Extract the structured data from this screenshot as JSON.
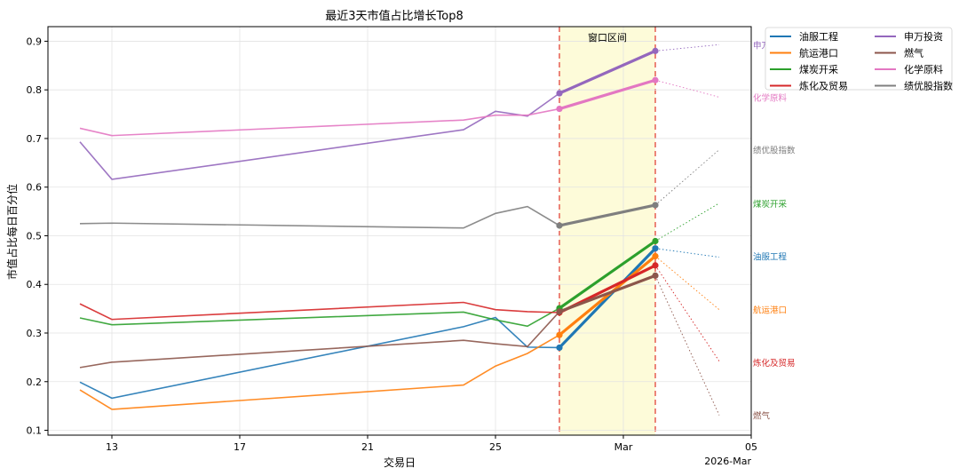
{
  "chart_data": {
    "type": "line",
    "title": "最近3天市值占比增长Top8",
    "xlabel": "交易日",
    "ylabel": "市值占比每日百分位",
    "xlim": [
      "2026-02-11",
      "2026-03-05"
    ],
    "ylim": [
      0.09,
      0.93
    ],
    "x_ticks": [
      {
        "date": "2026-02-13",
        "label": "13"
      },
      {
        "date": "2026-02-17",
        "label": "17"
      },
      {
        "date": "2026-02-21",
        "label": "21"
      },
      {
        "date": "2026-02-25",
        "label": "25"
      },
      {
        "date": "2026-03-01",
        "label": "Mar"
      },
      {
        "date": "2026-03-05",
        "label": "05"
      }
    ],
    "x_offset_label": "2026-Mar",
    "y_ticks": [
      0.1,
      0.2,
      0.3,
      0.4,
      0.5,
      0.6,
      0.7,
      0.8,
      0.9
    ],
    "y_tick_labels": [
      "0.1",
      "0.2",
      "0.3",
      "0.4",
      "0.5",
      "0.6",
      "0.7",
      "0.8",
      "0.9"
    ],
    "grid": true,
    "dates": [
      "2026-02-12",
      "2026-02-13",
      "2026-02-24",
      "2026-02-25",
      "2026-02-26",
      "2026-02-27",
      "2026-03-02"
    ],
    "window": {
      "start": "2026-02-27",
      "end": "2026-03-02",
      "label": "窗口区间",
      "fill_color": "#fdfbd9",
      "line_color": "#e8675c"
    },
    "projection_date": "2026-03-04",
    "legend_position": "outside-top-right",
    "series": [
      {
        "name": "油服工程",
        "color": "#1f77b4",
        "values": [
          0.199,
          0.166,
          0.313,
          0.332,
          0.271,
          0.27,
          0.474
        ],
        "projection": 0.456
      },
      {
        "name": "航运港口",
        "color": "#ff7f0e",
        "values": [
          0.183,
          0.143,
          0.193,
          0.232,
          0.258,
          0.296,
          0.458
        ],
        "projection": 0.348
      },
      {
        "name": "煤炭开采",
        "color": "#2ca02c",
        "values": [
          0.331,
          0.317,
          0.343,
          0.327,
          0.314,
          0.351,
          0.489
        ],
        "projection": 0.567
      },
      {
        "name": "炼化及贸易",
        "color": "#d62728",
        "values": [
          0.36,
          0.328,
          0.363,
          0.348,
          0.344,
          0.342,
          0.439
        ],
        "projection": 0.242
      },
      {
        "name": "申万投资",
        "color": "#9467bd",
        "values": [
          0.693,
          0.616,
          0.718,
          0.756,
          0.746,
          0.793,
          0.88
        ],
        "projection": 0.893
      },
      {
        "name": "燃气",
        "color": "#8c564b",
        "values": [
          0.229,
          0.24,
          0.285,
          0.278,
          0.272,
          0.344,
          0.418
        ],
        "projection": 0.131
      },
      {
        "name": "化学原料",
        "color": "#e377c2",
        "values": [
          0.721,
          0.706,
          0.738,
          0.748,
          0.748,
          0.761,
          0.82
        ],
        "projection": 0.785
      },
      {
        "name": "绩优股指数",
        "color": "#7f7f7f",
        "values": [
          0.525,
          0.526,
          0.516,
          0.546,
          0.56,
          0.521,
          0.563
        ],
        "projection": 0.677
      }
    ],
    "end_labels": [
      {
        "text": "申万投资",
        "color": "#9467bd",
        "y": 0.893
      },
      {
        "text": "化学原料",
        "color": "#e377c2",
        "y": 0.785
      },
      {
        "text": "绩优股指数",
        "color": "#7f7f7f",
        "y": 0.677
      },
      {
        "text": "煤炭开采",
        "color": "#2ca02c",
        "y": 0.567
      },
      {
        "text": "油服工程",
        "color": "#1f77b4",
        "y": 0.458
      },
      {
        "text": "航运港口",
        "color": "#ff7f0e",
        "y": 0.348
      },
      {
        "text": "炼化及贸易",
        "color": "#d62728",
        "y": 0.24
      },
      {
        "text": "燃气",
        "color": "#8c564b",
        "y": 0.131
      }
    ]
  }
}
